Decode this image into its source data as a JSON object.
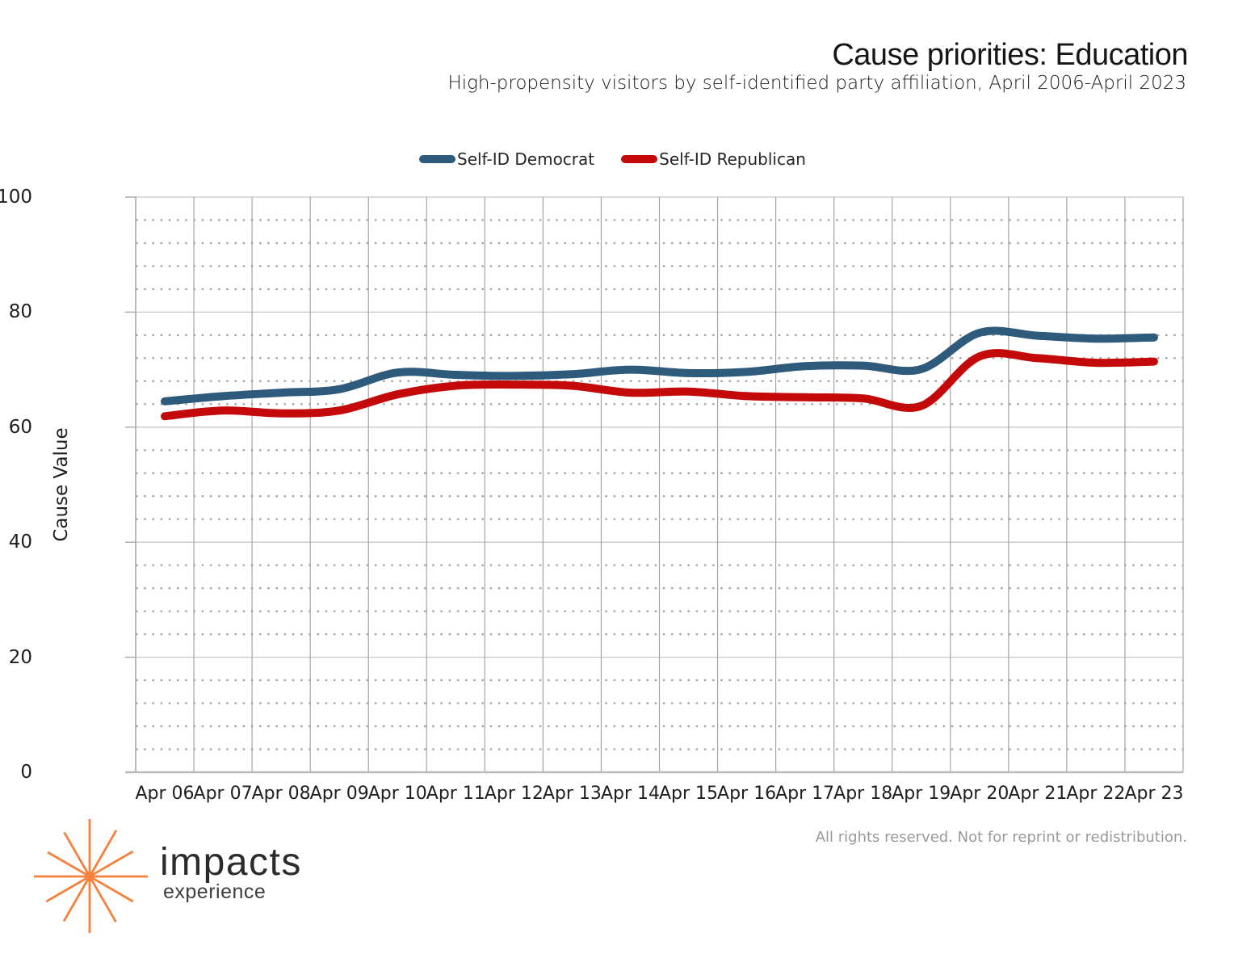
{
  "header": {
    "title": "Cause priorities: Education",
    "subtitle": "High-propensity visitors by self-identified party affiliation, April 2006-April 2023"
  },
  "footer": {
    "rights": "All rights reserved. Not for reprint or redistribution."
  },
  "logo": {
    "name": "impacts",
    "sub": "experience",
    "star_color": "#F5813E"
  },
  "colors": {
    "democrat": "#2E5A7C",
    "republican": "#C30909",
    "grid_major": "#C6C6C6",
    "grid_minor": "#A8A8A8",
    "grid_vertical": "#A3A3A3",
    "axis_line": "#B9B9B9"
  },
  "chart_data": {
    "type": "line",
    "smoothed": true,
    "title": "Cause priorities: Education",
    "subtitle": "High-propensity visitors by self-identified party affiliation, April 2006-April 2023",
    "xlabel": "",
    "ylabel": "Cause Value",
    "ylim": [
      0,
      100
    ],
    "y_ticks": [
      100,
      80,
      60,
      40,
      20,
      0
    ],
    "minor_grid_step": 4,
    "major_grid_step": 20,
    "grid": "on",
    "legend_position": "top",
    "categories": [
      "Apr 06",
      "Apr 07",
      "Apr 08",
      "Apr 09",
      "Apr 10",
      "Apr 11",
      "Apr 12",
      "Apr 13",
      "Apr 14",
      "Apr 15",
      "Apr 16",
      "Apr 17",
      "Apr 18",
      "Apr 19",
      "Apr 20",
      "Apr 21",
      "Apr 22",
      "Apr 23"
    ],
    "series": [
      {
        "name": "Self-ID Democrat",
        "color": "#2E5A7C",
        "values": [
          64.5,
          65.4,
          66.0,
          66.6,
          69.5,
          69.1,
          68.9,
          69.2,
          70.0,
          69.4,
          69.6,
          70.6,
          70.7,
          70.1,
          76.4,
          75.9,
          75.4,
          75.6
        ]
      },
      {
        "name": "Self-ID Republican",
        "color": "#C30909",
        "values": [
          61.9,
          62.9,
          62.4,
          62.9,
          65.7,
          67.2,
          67.4,
          67.2,
          66.0,
          66.2,
          65.4,
          65.2,
          65.0,
          63.7,
          72.3,
          72.0,
          71.2,
          71.4
        ]
      }
    ]
  }
}
